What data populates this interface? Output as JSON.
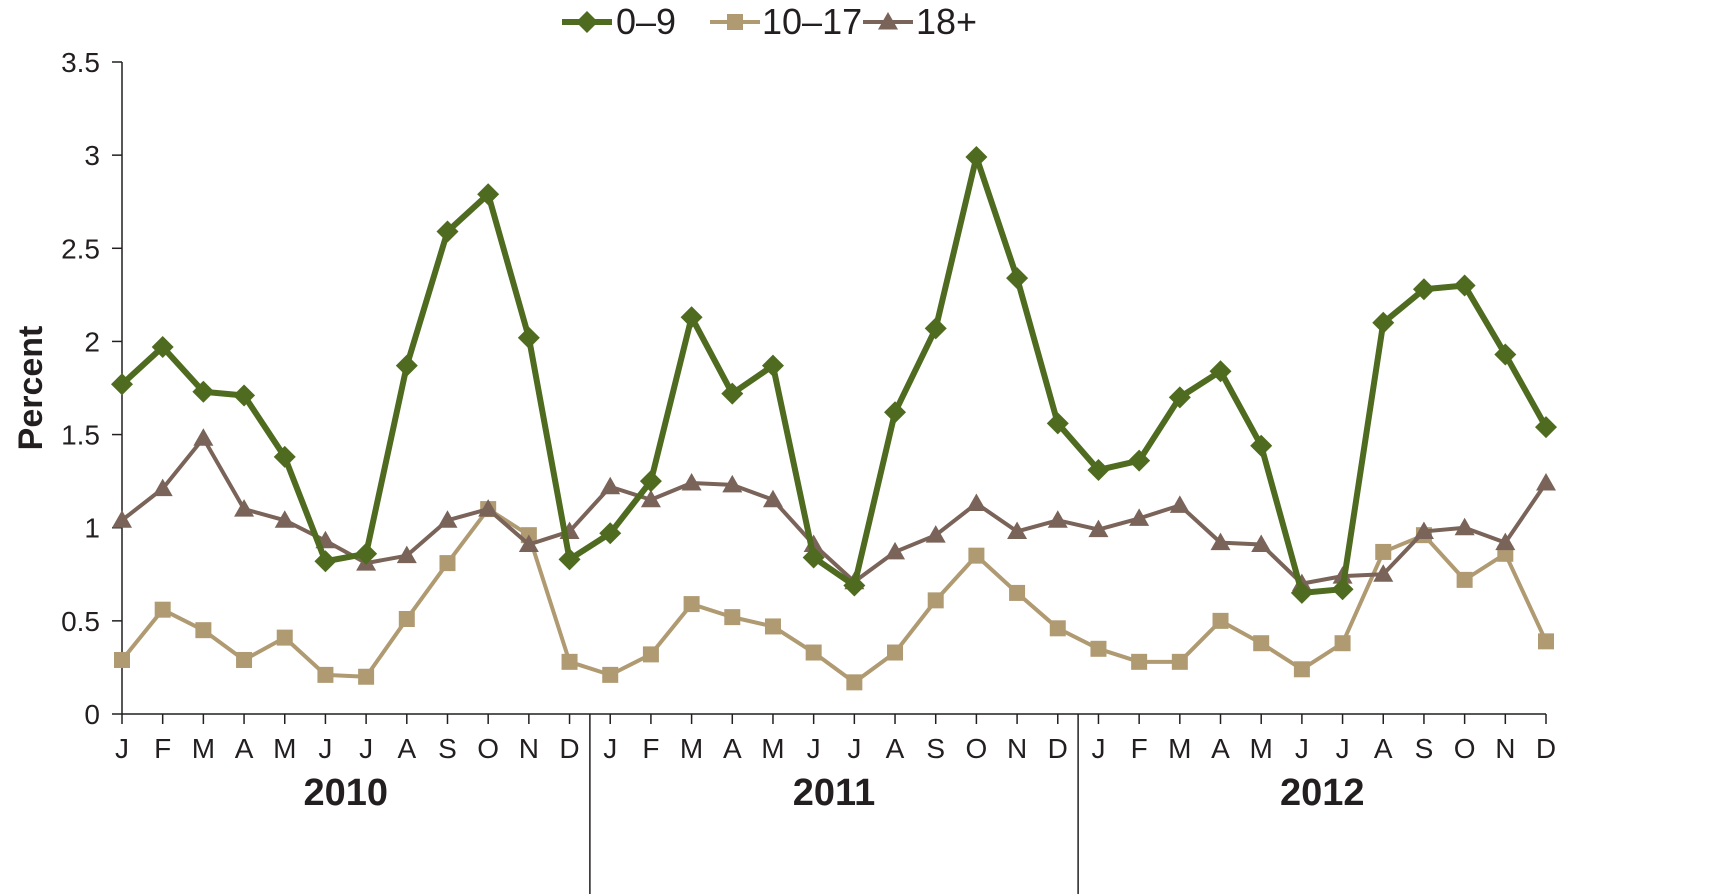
{
  "chart_data": {
    "type": "line",
    "ylabel": "Percent",
    "ylim": [
      0,
      3.5
    ],
    "yticks": [
      "0",
      "0.5",
      "1",
      "1.5",
      "2",
      "2.5",
      "3",
      "3.5"
    ],
    "years": [
      "2010",
      "2011",
      "2012"
    ],
    "months": [
      "J",
      "F",
      "M",
      "A",
      "M",
      "J",
      "J",
      "A",
      "S",
      "O",
      "N",
      "D",
      "J",
      "F",
      "M",
      "A",
      "M",
      "J",
      "J",
      "A",
      "S",
      "O",
      "N",
      "D",
      "J",
      "F",
      "M",
      "A",
      "M",
      "J",
      "J",
      "A",
      "S",
      "O",
      "N",
      "D"
    ],
    "legend_position": "top-center",
    "grid": false,
    "series": [
      {
        "name": "0–9",
        "color": "#4e6b1f",
        "marker": "diamond",
        "values": [
          1.77,
          1.97,
          1.73,
          1.71,
          1.38,
          0.82,
          0.86,
          1.87,
          2.59,
          2.79,
          2.02,
          0.83,
          0.97,
          1.25,
          2.13,
          1.72,
          1.87,
          0.84,
          0.69,
          1.62,
          2.07,
          2.99,
          2.34,
          1.56,
          1.31,
          1.36,
          1.7,
          1.84,
          1.44,
          0.65,
          0.67,
          2.1,
          2.28,
          2.3,
          1.93,
          1.54
        ]
      },
      {
        "name": "10–17",
        "color": "#b09a72",
        "marker": "square",
        "values": [
          0.29,
          0.56,
          0.45,
          0.29,
          0.41,
          0.21,
          0.2,
          0.51,
          0.81,
          1.1,
          0.96,
          0.28,
          0.21,
          0.32,
          0.59,
          0.52,
          0.47,
          0.33,
          0.17,
          0.33,
          0.61,
          0.85,
          0.65,
          0.46,
          0.35,
          0.28,
          0.28,
          0.5,
          0.38,
          0.24,
          0.38,
          0.87,
          0.96,
          0.72,
          0.86,
          0.39
        ]
      },
      {
        "name": "18+",
        "color": "#7a6358",
        "marker": "triangle",
        "values": [
          1.04,
          1.21,
          1.48,
          1.1,
          1.04,
          0.93,
          0.81,
          0.85,
          1.04,
          1.1,
          0.91,
          0.98,
          1.22,
          1.15,
          1.24,
          1.23,
          1.15,
          0.91,
          0.71,
          0.87,
          0.96,
          1.13,
          0.98,
          1.04,
          0.99,
          1.05,
          1.12,
          0.92,
          0.91,
          0.7,
          0.74,
          0.75,
          0.98,
          1.0,
          0.92,
          1.24
        ]
      }
    ]
  }
}
